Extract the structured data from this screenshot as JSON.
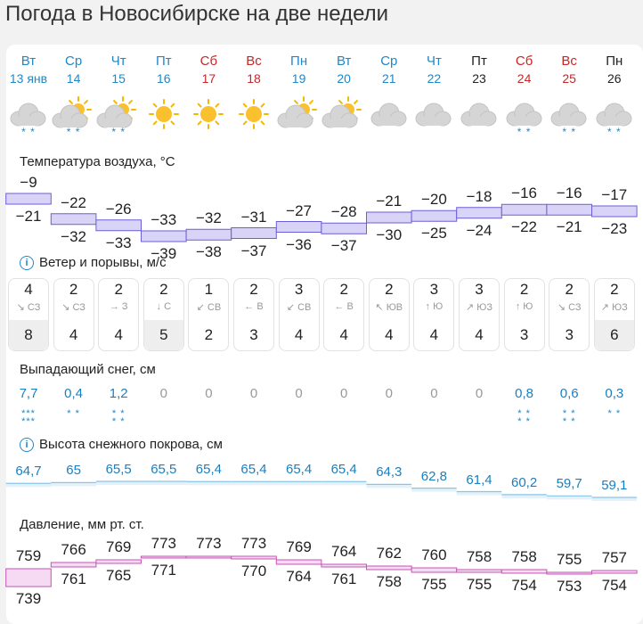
{
  "title": "Погода в Новосибирске на две недели",
  "colors": {
    "weekday": "#1e88c8",
    "weekend": "#c62828",
    "past_day": "#222222"
  },
  "days": [
    {
      "weekday": "Вт",
      "date": "13 янв",
      "type": "weekday",
      "icon": "cloud-snow-icon",
      "flakes": "* *"
    },
    {
      "weekday": "Ср",
      "date": "14",
      "type": "weekday",
      "icon": "partly-cloudy-snow-icon",
      "flakes": "* *"
    },
    {
      "weekday": "Чт",
      "date": "15",
      "type": "weekday",
      "icon": "partly-cloudy-snow-icon",
      "flakes": "* *"
    },
    {
      "weekday": "Пт",
      "date": "16",
      "type": "weekday",
      "icon": "sun-icon",
      "flakes": ""
    },
    {
      "weekday": "Сб",
      "date": "17",
      "type": "weekend",
      "icon": "sun-icon",
      "flakes": ""
    },
    {
      "weekday": "Вс",
      "date": "18",
      "type": "weekend",
      "icon": "sun-icon",
      "flakes": ""
    },
    {
      "weekday": "Пн",
      "date": "19",
      "type": "weekday",
      "icon": "partly-cloudy-icon",
      "flakes": ""
    },
    {
      "weekday": "Вт",
      "date": "20",
      "type": "weekday",
      "icon": "partly-cloudy-icon",
      "flakes": ""
    },
    {
      "weekday": "Ср",
      "date": "21",
      "type": "weekday",
      "icon": "cloud-icon",
      "flakes": ""
    },
    {
      "weekday": "Чт",
      "date": "22",
      "type": "weekday",
      "icon": "cloud-icon",
      "flakes": ""
    },
    {
      "weekday": "Пт",
      "date": "23",
      "type": "other",
      "icon": "cloud-icon",
      "flakes": ""
    },
    {
      "weekday": "Сб",
      "date": "24",
      "type": "weekend",
      "icon": "cloud-snow-icon",
      "flakes": "* *"
    },
    {
      "weekday": "Вс",
      "date": "25",
      "type": "weekend",
      "icon": "cloud-snow-icon",
      "flakes": "* *"
    },
    {
      "weekday": "Пн",
      "date": "26",
      "type": "other",
      "icon": "cloud-snow-icon",
      "flakes": "* *"
    }
  ],
  "temperature": {
    "label": "Температура воздуха, °C",
    "max": [
      "−9",
      "−22",
      "−26",
      "−33",
      "−32",
      "−31",
      "−27",
      "−28",
      "−21",
      "−20",
      "−18",
      "−16",
      "−16",
      "−17"
    ],
    "min": [
      "−21",
      "−32",
      "−33",
      "−39",
      "−38",
      "−37",
      "−36",
      "−37",
      "−30",
      "−25",
      "−24",
      "−22",
      "−21",
      "−23"
    ],
    "max_values": [
      -9,
      -22,
      -26,
      -33,
      -32,
      -31,
      -27,
      -28,
      -21,
      -20,
      -18,
      -16,
      -16,
      -17
    ],
    "min_values": [
      -21,
      -32,
      -33,
      -39,
      -38,
      -37,
      -36,
      -37,
      -30,
      -25,
      -24,
      -22,
      -21,
      -23
    ]
  },
  "wind": {
    "label": "Ветер и порывы, м/с",
    "speed": [
      "4",
      "2",
      "2",
      "2",
      "1",
      "2",
      "3",
      "2",
      "2",
      "3",
      "3",
      "2",
      "2",
      "2"
    ],
    "direction": [
      "↘ СЗ",
      "↘ СЗ",
      "→ З",
      "↓ С",
      "↙ СВ",
      "← В",
      "↙ СВ",
      "← В",
      "↖ ЮВ",
      "↑ Ю",
      "↗ ЮЗ",
      "↑ Ю",
      "↘ СЗ",
      "↗ ЮЗ"
    ],
    "gusts": [
      "8",
      "4",
      "4",
      "5",
      "2",
      "3",
      "4",
      "4",
      "4",
      "4",
      "4",
      "3",
      "3",
      "6"
    ],
    "gust_highlight": [
      true,
      false,
      false,
      true,
      false,
      false,
      false,
      false,
      false,
      false,
      false,
      false,
      false,
      true
    ]
  },
  "snowfall": {
    "label": "Выпадающий снег, см",
    "values": [
      "7,7",
      "0,4",
      "1,2",
      "0",
      "0",
      "0",
      "0",
      "0",
      "0",
      "0",
      "0",
      "0,8",
      "0,6",
      "0,3"
    ],
    "flakes": [
      "***\n***",
      "* *",
      "* *\n* *",
      "",
      "",
      "",
      "",
      "",
      "",
      "",
      "",
      "* *\n* *",
      "* *\n* *",
      "* *"
    ]
  },
  "snow_depth": {
    "label": "Высота снежного покрова, см",
    "values": [
      "64,7",
      "65",
      "65,5",
      "65,5",
      "65,4",
      "65,4",
      "65,4",
      "65,4",
      "64,3",
      "62,8",
      "61,4",
      "60,2",
      "59,7",
      "59,1"
    ],
    "numbers": [
      64.7,
      65,
      65.5,
      65.5,
      65.4,
      65.4,
      65.4,
      65.4,
      64.3,
      62.8,
      61.4,
      60.2,
      59.7,
      59.1
    ]
  },
  "pressure": {
    "label": "Давление, мм рт. ст.",
    "max": [
      "759",
      "766",
      "769",
      "773",
      "773",
      "773",
      "769",
      "764",
      "762",
      "760",
      "758",
      "758",
      "755",
      "757"
    ],
    "min": [
      "739",
      "761",
      "765",
      "771",
      "",
      "770",
      "764",
      "761",
      "758",
      "755",
      "755",
      "754",
      "753",
      "754"
    ],
    "max_values": [
      759,
      766,
      769,
      773,
      773,
      773,
      769,
      764,
      762,
      760,
      758,
      758,
      755,
      757
    ],
    "min_values": [
      739,
      761,
      765,
      771,
      773,
      770,
      764,
      761,
      758,
      755,
      755,
      754,
      753,
      754
    ]
  }
}
